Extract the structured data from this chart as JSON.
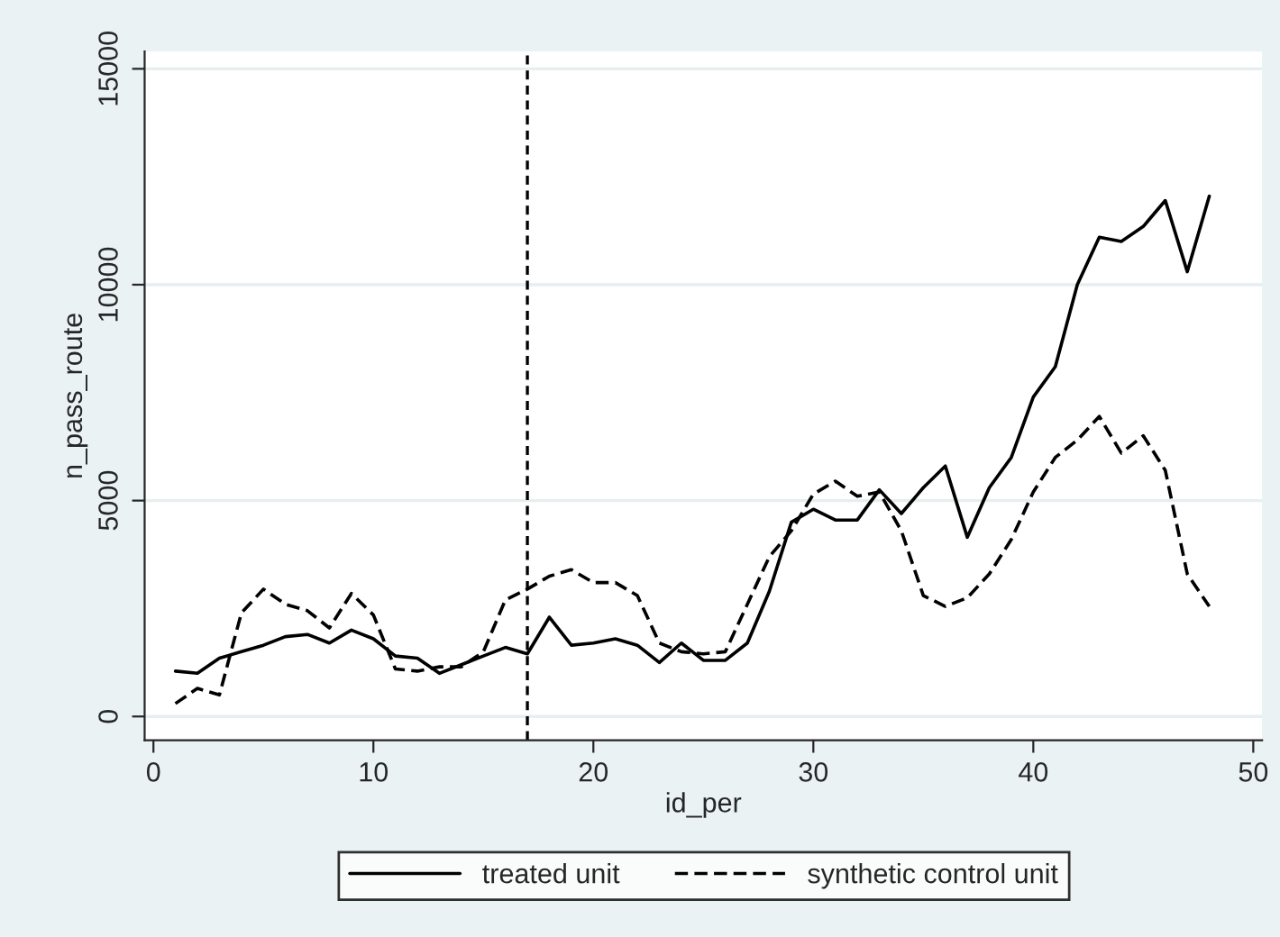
{
  "chart_data": {
    "type": "line",
    "xlabel": "id_per",
    "ylabel": "n_pass_route",
    "x": [
      1,
      2,
      3,
      4,
      5,
      6,
      7,
      8,
      9,
      10,
      11,
      12,
      13,
      14,
      15,
      16,
      17,
      18,
      19,
      20,
      21,
      22,
      23,
      24,
      25,
      26,
      27,
      28,
      29,
      30,
      31,
      32,
      33,
      34,
      35,
      36,
      37,
      38,
      39,
      40,
      41,
      42,
      43,
      44,
      45,
      46,
      47,
      48
    ],
    "series": [
      {
        "name": "treated unit",
        "color": "#000000",
        "line_style": "solid",
        "values": [
          1050,
          1000,
          1350,
          1500,
          1650,
          1850,
          1900,
          1700,
          2000,
          1800,
          1400,
          1350,
          1000,
          1200,
          1400,
          1600,
          1450,
          2300,
          1650,
          1700,
          1800,
          1650,
          1250,
          1700,
          1300,
          1300,
          1700,
          2900,
          4500,
          4800,
          4550,
          4550,
          5250,
          4700,
          5300,
          5800,
          4150,
          5300,
          6000,
          7400,
          8100,
          10000,
          11100,
          11000,
          11350,
          11950,
          10300,
          12050
        ]
      },
      {
        "name": "synthetic control unit",
        "color": "#000000",
        "line_style": "dashed",
        "values": [
          300,
          650,
          500,
          2400,
          2950,
          2600,
          2450,
          2050,
          2850,
          2350,
          1100,
          1050,
          1150,
          1150,
          1500,
          2700,
          2950,
          3250,
          3400,
          3100,
          3100,
          2800,
          1700,
          1500,
          1450,
          1500,
          2600,
          3700,
          4300,
          5150,
          5450,
          5100,
          5200,
          4300,
          2800,
          2550,
          2750,
          3300,
          4100,
          5200,
          6000,
          6400,
          6950,
          6100,
          6500,
          5700,
          3300,
          2550
        ]
      }
    ],
    "xlim": [
      -0.4,
      50.4
    ],
    "xticks": [
      0,
      10,
      20,
      30,
      40,
      50
    ],
    "ylim": [
      -550,
      15400
    ],
    "yticks": [
      0,
      5000,
      10000,
      15000
    ],
    "ref_lines": [
      {
        "axis": "x",
        "value": 17,
        "color": "#000000",
        "line_style": "dotted"
      }
    ],
    "grid": "y",
    "legend": "bottom"
  }
}
